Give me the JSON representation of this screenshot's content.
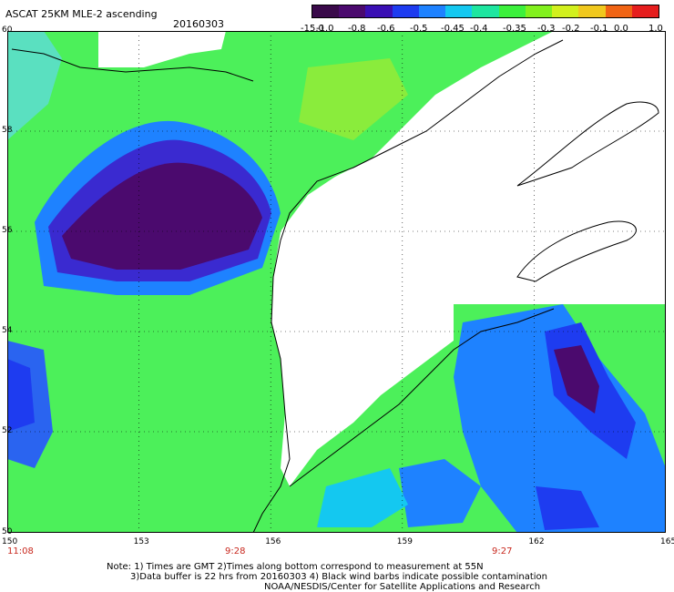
{
  "header": {
    "title": "ASCAT 25KM MLE-2 ascending",
    "date": "20160303"
  },
  "colorbar": {
    "labels": [
      "-15.0",
      "-1.0",
      "-0.8",
      "-0.6",
      "-0.5",
      "-0.45",
      "-0.4",
      "-0.35",
      "-0.3",
      "-0.2",
      "-0.1",
      "0.0",
      "1.0"
    ],
    "colors": [
      "#3a0a4a",
      "#4b0a6e",
      "#3a0fb4",
      "#1e3cf0",
      "#1e82ff",
      "#14c8f0",
      "#1ee6a0",
      "#3cf03c",
      "#82f01e",
      "#d2f01e",
      "#f0c81e",
      "#f06414",
      "#e61e1e"
    ]
  },
  "map": {
    "lon_labels": [
      "150",
      "153",
      "156",
      "159",
      "162",
      "165"
    ],
    "lat_labels": [
      "60",
      "58",
      "56",
      "54",
      "52",
      "50"
    ],
    "time_labels": [
      "11:08",
      "9:28",
      "9:27"
    ],
    "land_color": "#ffffff",
    "gridline": "dotted"
  },
  "notes": {
    "line1": "Note: 1) Times are GMT 2)Times along bottom correspond to measurement at 55N",
    "line2": "3)Data buffer is 22 hrs from 20160303 4) Black wind barbs indicate possible contamination",
    "line3": "NOAA/NESDIS/Center for Satellite Applications and Research"
  }
}
